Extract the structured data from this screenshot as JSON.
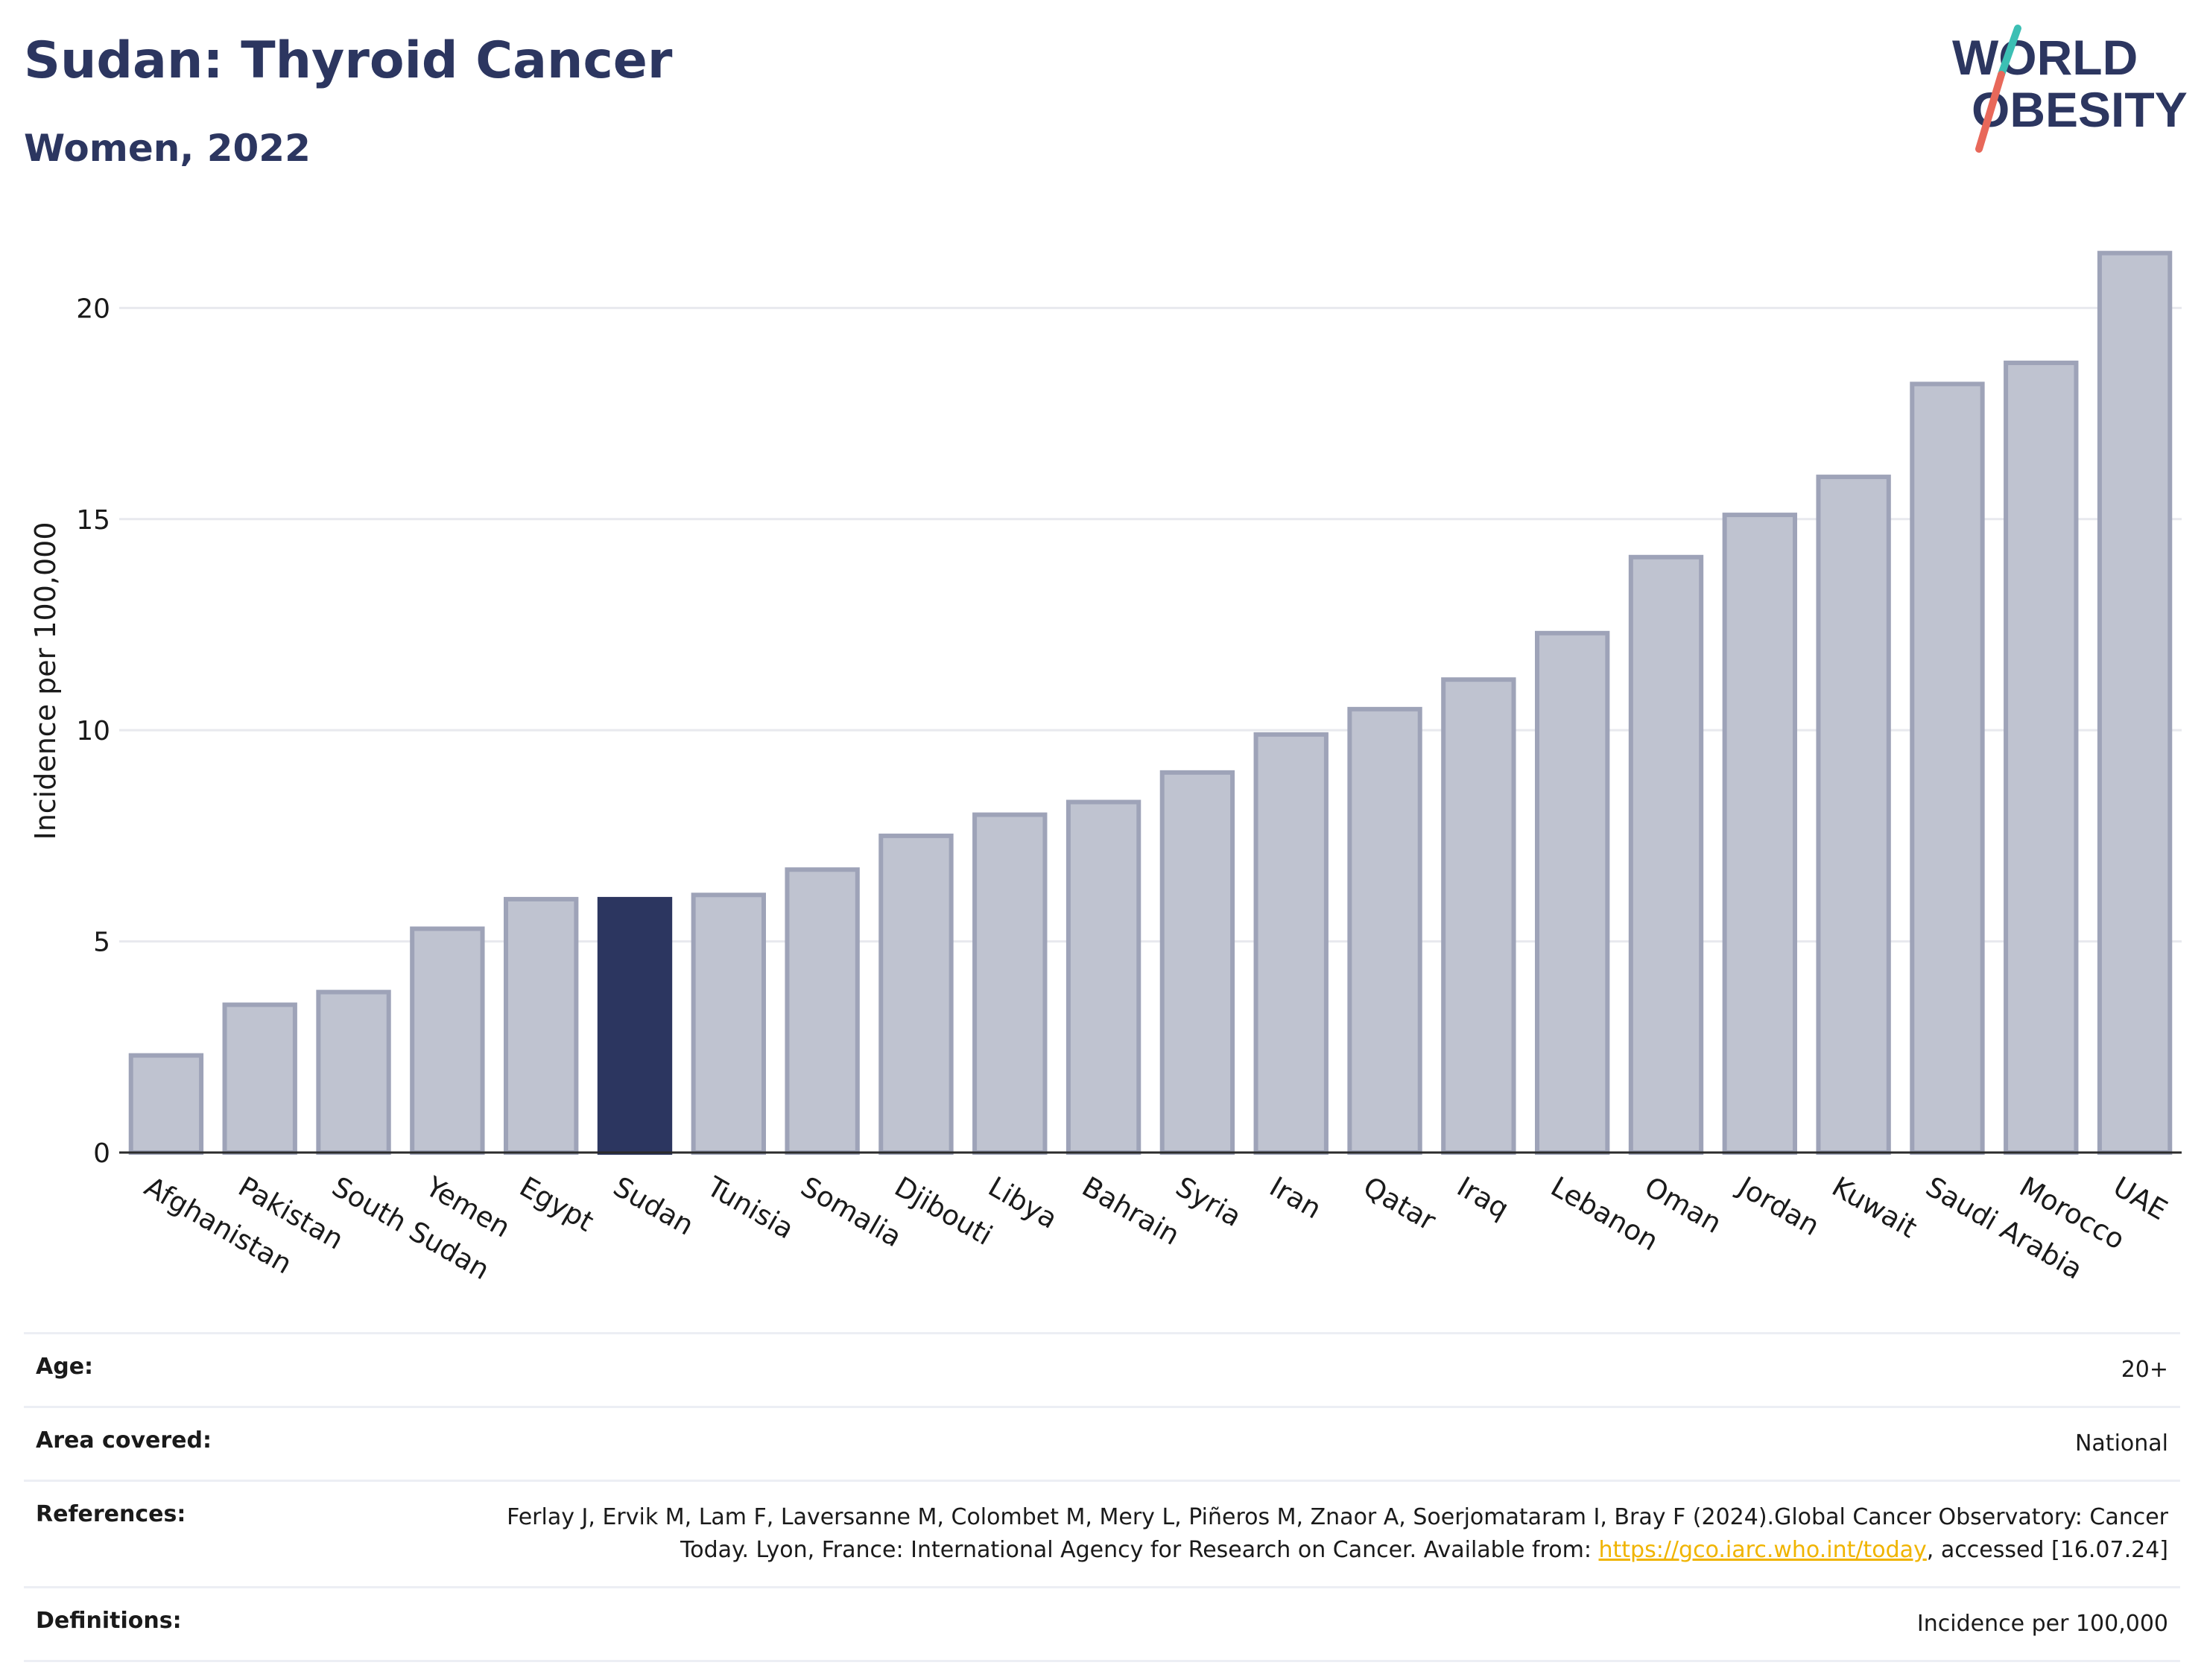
{
  "header": {
    "title": "Sudan: Thyroid Cancer",
    "subtitle": "Women, 2022"
  },
  "logo": {
    "line1": "WORLD",
    "line2": "OBESITY",
    "colors": {
      "text": "#2c3660",
      "slash_top": "#3cbfb4",
      "slash_bottom": "#e8685a"
    }
  },
  "chart_data": {
    "type": "bar",
    "ylabel": "Incidence per 100,000",
    "xlabel": "",
    "ylim": [
      0,
      22
    ],
    "yticks": [
      0,
      5,
      10,
      15,
      20
    ],
    "grid": true,
    "highlight": "Sudan",
    "colors": {
      "bar": "#bfc3d0",
      "bar_edge": "#9ea3b8",
      "highlight": "#2c3660",
      "grid": "#e8e9ee",
      "axis": "#2b2b2b"
    },
    "categories": [
      "Afghanistan",
      "Pakistan",
      "South Sudan",
      "Yemen",
      "Egypt",
      "Sudan",
      "Tunisia",
      "Somalia",
      "Djibouti",
      "Libya",
      "Bahrain",
      "Syria",
      "Iran",
      "Qatar",
      "Iraq",
      "Lebanon",
      "Oman",
      "Jordan",
      "Kuwait",
      "Saudi Arabia",
      "Morocco",
      "UAE"
    ],
    "values": [
      2.3,
      3.5,
      3.8,
      5.3,
      6.0,
      6.0,
      6.1,
      6.7,
      7.5,
      8.0,
      8.3,
      9.0,
      9.9,
      10.5,
      11.2,
      12.3,
      14.1,
      15.1,
      16.0,
      18.2,
      18.7,
      21.3
    ]
  },
  "meta": {
    "age": {
      "label": "Age:",
      "value": "20+"
    },
    "area": {
      "label": "Area covered:",
      "value": "National"
    },
    "references": {
      "label": "References:",
      "text_before": "Ferlay J, Ervik M, Lam F, Laversanne M, Colombet M, Mery L, Piñeros M, Znaor A, Soerjomataram I, Bray F (2024).Global Cancer Observatory: Cancer Today. Lyon, France: International Agency for Research on Cancer. Available from: ",
      "link": "https://gco.iarc.who.int/today",
      "text_after": ", accessed [16.07.24]"
    },
    "definitions": {
      "label": "Definitions:",
      "value": "Incidence per 100,000"
    }
  }
}
